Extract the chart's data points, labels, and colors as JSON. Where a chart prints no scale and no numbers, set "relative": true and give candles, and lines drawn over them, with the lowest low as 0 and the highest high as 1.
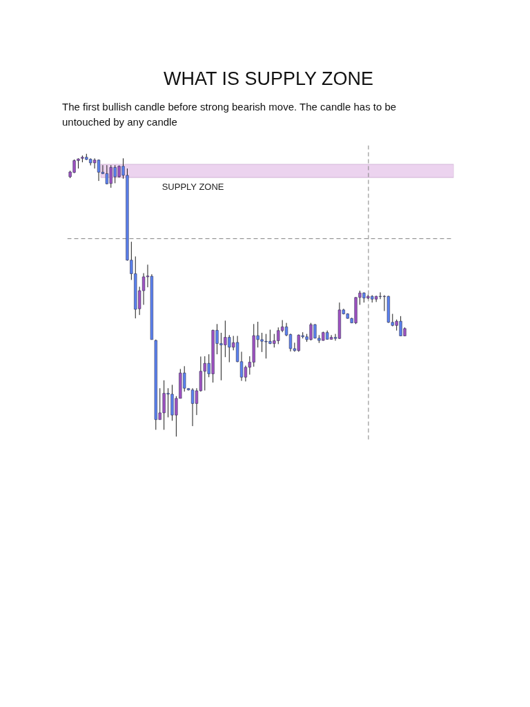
{
  "chart_data": {
    "type": "candlestick",
    "title": "WHAT IS SUPPLY ZONE",
    "subtitle": "The first bullish candle before strong bearish move. The candle has to be untouched by any  candle",
    "relative": true,
    "categories": [
      null,
      null,
      null,
      null,
      null,
      null,
      null,
      null,
      null,
      null,
      null,
      null,
      null,
      null,
      null,
      null,
      null,
      null,
      null,
      null,
      null,
      null,
      null,
      null,
      null,
      null,
      null,
      null,
      null,
      null,
      null,
      null,
      null,
      null,
      null,
      null,
      null,
      null,
      null,
      null,
      null,
      null,
      null,
      null,
      null,
      null,
      null,
      null,
      null,
      null,
      null,
      null,
      null,
      null,
      null,
      null,
      null,
      null,
      null,
      null,
      null,
      null,
      null,
      null,
      null,
      null,
      null,
      null,
      null,
      null,
      null,
      null,
      null,
      null,
      null,
      null,
      null,
      null,
      null,
      null,
      null,
      null,
      null
    ],
    "ohlc": [
      [
        0.919,
        0.94,
        0.914,
        0.936
      ],
      [
        0.934,
        0.98,
        0.932,
        0.976
      ],
      [
        0.976,
        0.984,
        0.948,
        0.982
      ],
      [
        0.984,
        0.994,
        0.97,
        0.988
      ],
      [
        0.988,
        1.0,
        0.978,
        0.98
      ],
      [
        0.981,
        0.984,
        0.959,
        0.968
      ],
      [
        0.968,
        0.984,
        0.948,
        0.978
      ],
      [
        0.978,
        0.98,
        0.904,
        0.935
      ],
      [
        0.935,
        0.96,
        0.928,
        0.93
      ],
      [
        0.93,
        0.96,
        0.892,
        0.894
      ],
      [
        0.895,
        0.96,
        0.88,
        0.952
      ],
      [
        0.952,
        0.96,
        0.896,
        0.919
      ],
      [
        0.919,
        0.959,
        0.916,
        0.956
      ],
      [
        0.956,
        0.984,
        0.912,
        0.924
      ],
      [
        0.924,
        0.948,
        0.622,
        0.624
      ],
      [
        0.624,
        0.689,
        0.554,
        0.576
      ],
      [
        0.576,
        0.637,
        0.418,
        0.45
      ],
      [
        0.452,
        0.53,
        0.43,
        0.516
      ],
      [
        0.516,
        0.578,
        0.466,
        0.565
      ],
      [
        0.565,
        0.608,
        0.528,
        0.568
      ],
      [
        0.567,
        0.574,
        0.343,
        0.343
      ],
      [
        0.34,
        0.343,
        0.024,
        0.06
      ],
      [
        0.06,
        0.171,
        0.06,
        0.084
      ],
      [
        0.084,
        0.199,
        0.024,
        0.153
      ],
      [
        0.153,
        0.171,
        0.068,
        0.15
      ],
      [
        0.15,
        0.183,
        0.056,
        0.076
      ],
      [
        0.076,
        0.143,
        0.0,
        0.135
      ],
      [
        0.135,
        0.239,
        0.135,
        0.225
      ],
      [
        0.225,
        0.249,
        0.159,
        0.171
      ],
      [
        0.17,
        0.171,
        0.163,
        0.165
      ],
      [
        0.165,
        0.171,
        0.037,
        0.117
      ],
      [
        0.117,
        0.171,
        0.076,
        0.162
      ],
      [
        0.162,
        0.283,
        0.159,
        0.231
      ],
      [
        0.231,
        0.284,
        0.163,
        0.259
      ],
      [
        0.259,
        0.291,
        0.21,
        0.222
      ],
      [
        0.222,
        0.378,
        0.191,
        0.376
      ],
      [
        0.376,
        0.398,
        0.291,
        0.329
      ],
      [
        0.329,
        0.367,
        0.199,
        0.324
      ],
      [
        0.324,
        0.41,
        0.281,
        0.351
      ],
      [
        0.351,
        0.359,
        0.263,
        0.316
      ],
      [
        0.316,
        0.356,
        0.305,
        0.332
      ],
      [
        0.333,
        0.356,
        0.263,
        0.265
      ],
      [
        0.265,
        0.3,
        0.197,
        0.21
      ],
      [
        0.21,
        0.251,
        0.195,
        0.245
      ],
      [
        0.245,
        0.284,
        0.219,
        0.263
      ],
      [
        0.263,
        0.398,
        0.247,
        0.357
      ],
      [
        0.357,
        0.406,
        0.315,
        0.343
      ],
      [
        0.343,
        0.367,
        0.299,
        0.337
      ],
      [
        0.337,
        0.363,
        0.276,
        0.335
      ],
      [
        0.337,
        0.378,
        0.327,
        0.329
      ],
      [
        0.329,
        0.363,
        0.315,
        0.339
      ],
      [
        0.339,
        0.386,
        0.327,
        0.375
      ],
      [
        0.375,
        0.412,
        0.369,
        0.388
      ],
      [
        0.388,
        0.402,
        0.355,
        0.359
      ],
      [
        0.361,
        0.364,
        0.301,
        0.311
      ],
      [
        0.311,
        0.332,
        0.3,
        0.304
      ],
      [
        0.304,
        0.361,
        0.3,
        0.359
      ],
      [
        0.357,
        0.369,
        0.347,
        0.353
      ],
      [
        0.353,
        0.363,
        0.335,
        0.343
      ],
      [
        0.343,
        0.402,
        0.34,
        0.396
      ],
      [
        0.396,
        0.398,
        0.347,
        0.348
      ],
      [
        0.348,
        0.359,
        0.331,
        0.34
      ],
      [
        0.34,
        0.371,
        0.339,
        0.368
      ],
      [
        0.368,
        0.375,
        0.343,
        0.344
      ],
      [
        0.344,
        0.359,
        0.343,
        0.351
      ],
      [
        0.351,
        0.363,
        0.339,
        0.347
      ],
      [
        0.347,
        0.474,
        0.345,
        0.448
      ],
      [
        0.448,
        0.452,
        0.432,
        0.434
      ],
      [
        0.434,
        0.436,
        0.417,
        0.418
      ],
      [
        0.418,
        0.42,
        0.401,
        0.402
      ],
      [
        0.402,
        0.493,
        0.398,
        0.492
      ],
      [
        0.492,
        0.516,
        0.466,
        0.508
      ],
      [
        0.508,
        0.51,
        0.474,
        0.49
      ],
      [
        0.49,
        0.502,
        0.486,
        0.496
      ],
      [
        0.496,
        0.5,
        0.474,
        0.486
      ],
      [
        0.486,
        0.498,
        0.476,
        0.496
      ],
      [
        0.496,
        0.51,
        0.486,
        0.495
      ],
      [
        0.495,
        0.5,
        0.444,
        0.496
      ],
      [
        0.496,
        0.498,
        0.402,
        0.404
      ],
      [
        0.404,
        0.434,
        0.39,
        0.393
      ],
      [
        0.393,
        0.414,
        0.375,
        0.408
      ],
      [
        0.408,
        0.426,
        0.355,
        0.356
      ],
      [
        0.356,
        0.386,
        0.355,
        0.382
      ]
    ],
    "colors": [
      "#a052c2",
      "#a052c2",
      "#a052c2",
      "#a052c2",
      "#5a82f0",
      "#5a82f0",
      "#a052c2",
      "#5a82f0",
      "#5a82f0",
      "#5a82f0",
      "#a052c2",
      "#5a82f0",
      "#a052c2",
      "#5a82f0",
      "#5a82f0",
      "#5a82f0",
      "#5a82f0",
      "#a052c2",
      "#a052c2",
      "#a052c2",
      "#5a82f0",
      "#5a82f0",
      "#a052c2",
      "#a052c2",
      "#5a82f0",
      "#5a82f0",
      "#a052c2",
      "#a052c2",
      "#5a82f0",
      "#5a82f0",
      "#5a82f0",
      "#a052c2",
      "#a052c2",
      "#a052c2",
      "#5a82f0",
      "#a052c2",
      "#5a82f0",
      "#5a82f0",
      "#a052c2",
      "#5a82f0",
      "#a052c2",
      "#5a82f0",
      "#5a82f0",
      "#a052c2",
      "#a052c2",
      "#a052c2",
      "#5a82f0",
      "#5a82f0",
      "#5a82f0",
      "#5a82f0",
      "#a052c2",
      "#a052c2",
      "#a052c2",
      "#5a82f0",
      "#5a82f0",
      "#5a82f0",
      "#a052c2",
      "#5a82f0",
      "#5a82f0",
      "#a052c2",
      "#5a82f0",
      "#5a82f0",
      "#a052c2",
      "#5a82f0",
      "#a052c2",
      "#5a82f0",
      "#a052c2",
      "#5a82f0",
      "#5a82f0",
      "#5a82f0",
      "#a052c2",
      "#a052c2",
      "#5a82f0",
      "#a052c2",
      "#5a82f0",
      "#a052c2",
      "#5a82f0",
      "#a052c2",
      "#5a82f0",
      "#5a82f0",
      "#a052c2",
      "#5a82f0",
      "#a052c2"
    ],
    "bands": [
      {
        "axis": "y",
        "from": 0.916,
        "to": 0.963,
        "label": "SUPPLY ZONE",
        "color": "#ecd3ef"
      }
    ],
    "ref_lines": [
      {
        "axis": "y",
        "value": 0.7,
        "color": "#808080",
        "line_style": "dashed"
      }
    ]
  }
}
